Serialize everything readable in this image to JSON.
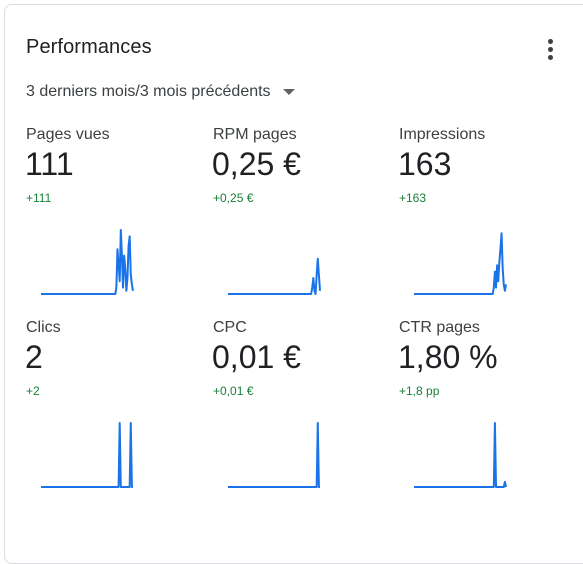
{
  "card": {
    "title": "Performances",
    "menu_icon": "more-vertical-icon",
    "period_label": "3 derniers mois/3 mois précédents",
    "period_icon": "caret-down-icon"
  },
  "colors": {
    "line": "#1a73e8",
    "positive_change": "#188038",
    "label": "#3c4043",
    "value": "#202124"
  },
  "metrics": [
    {
      "label": "Pages vues",
      "value": "111",
      "change": "+111",
      "spark": [
        0,
        0,
        0,
        0,
        0,
        0,
        0,
        0,
        0,
        0,
        0,
        0,
        0,
        0,
        0,
        0,
        0,
        0,
        0,
        0,
        0,
        0,
        0,
        0,
        0,
        0,
        0,
        0,
        0,
        0,
        0,
        0,
        0,
        0,
        0,
        0,
        0,
        0,
        0,
        0,
        0,
        0,
        0,
        0,
        0,
        0,
        0,
        0,
        0,
        0,
        0,
        0,
        0,
        0,
        0,
        0,
        0,
        0,
        0,
        0,
        0,
        0,
        0,
        0,
        0,
        0,
        0,
        0,
        0.1,
        0.7,
        0.45,
        0.2,
        1.0,
        0.6,
        0.1,
        0.6,
        0.4,
        0.05,
        0.25,
        0.75,
        0.9,
        0.3,
        0.15,
        0.05
      ]
    },
    {
      "label": "RPM pages",
      "value": "0,25 €",
      "change": "+0,25 €",
      "spark": [
        0,
        0,
        0,
        0,
        0,
        0,
        0,
        0,
        0,
        0,
        0,
        0,
        0,
        0,
        0,
        0,
        0,
        0,
        0,
        0,
        0,
        0,
        0,
        0,
        0,
        0,
        0,
        0,
        0,
        0,
        0,
        0,
        0,
        0,
        0,
        0,
        0,
        0,
        0,
        0,
        0,
        0,
        0,
        0,
        0,
        0,
        0,
        0,
        0,
        0,
        0,
        0,
        0,
        0,
        0,
        0,
        0,
        0,
        0,
        0,
        0,
        0,
        0,
        0,
        0,
        0,
        0,
        0,
        0,
        0,
        0,
        0,
        0,
        0,
        0,
        0,
        0.1,
        0.25,
        0.05,
        0,
        0.3,
        0.55,
        0.3,
        0.05
      ]
    },
    {
      "label": "Impressions",
      "value": "163",
      "change": "+163",
      "spark": [
        0,
        0,
        0,
        0,
        0,
        0,
        0,
        0,
        0,
        0,
        0,
        0,
        0,
        0,
        0,
        0,
        0,
        0,
        0,
        0,
        0,
        0,
        0,
        0,
        0,
        0,
        0,
        0,
        0,
        0,
        0,
        0,
        0,
        0,
        0,
        0,
        0,
        0,
        0,
        0,
        0,
        0,
        0,
        0,
        0,
        0,
        0,
        0,
        0,
        0,
        0,
        0,
        0,
        0,
        0,
        0,
        0,
        0,
        0,
        0,
        0,
        0,
        0,
        0,
        0,
        0,
        0,
        0,
        0,
        0,
        0,
        0,
        0.1,
        0.35,
        0.1,
        0.45,
        0.2,
        0.5,
        0.7,
        0.95,
        0.4,
        0.15,
        0.05,
        0.15
      ]
    },
    {
      "label": "Clics",
      "value": "2",
      "change": "+2",
      "spark": [
        0,
        0,
        0,
        0,
        0,
        0,
        0,
        0,
        0,
        0,
        0,
        0,
        0,
        0,
        0,
        0,
        0,
        0,
        0,
        0,
        0,
        0,
        0,
        0,
        0,
        0,
        0,
        0,
        0,
        0,
        0,
        0,
        0,
        0,
        0,
        0,
        0,
        0,
        0,
        0,
        0,
        0,
        0,
        0,
        0,
        0,
        0,
        0,
        0,
        0,
        0,
        0,
        0,
        0,
        0,
        0,
        0,
        0,
        0,
        0,
        0,
        0,
        0,
        0,
        0,
        0,
        0,
        0,
        0,
        0,
        0,
        1,
        0,
        0,
        0,
        0,
        0,
        0,
        0,
        0,
        0,
        1,
        0,
        0
      ]
    },
    {
      "label": "CPC",
      "value": "0,01 €",
      "change": "+0,01 €",
      "spark": [
        0,
        0,
        0,
        0,
        0,
        0,
        0,
        0,
        0,
        0,
        0,
        0,
        0,
        0,
        0,
        0,
        0,
        0,
        0,
        0,
        0,
        0,
        0,
        0,
        0,
        0,
        0,
        0,
        0,
        0,
        0,
        0,
        0,
        0,
        0,
        0,
        0,
        0,
        0,
        0,
        0,
        0,
        0,
        0,
        0,
        0,
        0,
        0,
        0,
        0,
        0,
        0,
        0,
        0,
        0,
        0,
        0,
        0,
        0,
        0,
        0,
        0,
        0,
        0,
        0,
        0,
        0,
        0,
        0,
        0,
        0,
        0,
        0,
        0,
        0,
        0,
        0,
        0,
        0,
        0,
        0,
        1,
        0,
        0
      ]
    },
    {
      "label": "CTR pages",
      "value": "1,80 %",
      "change": "+1,8 pp",
      "spark": [
        0,
        0,
        0,
        0,
        0,
        0,
        0,
        0,
        0,
        0,
        0,
        0,
        0,
        0,
        0,
        0,
        0,
        0,
        0,
        0,
        0,
        0,
        0,
        0,
        0,
        0,
        0,
        0,
        0,
        0,
        0,
        0,
        0,
        0,
        0,
        0,
        0,
        0,
        0,
        0,
        0,
        0,
        0,
        0,
        0,
        0,
        0,
        0,
        0,
        0,
        0,
        0,
        0,
        0,
        0,
        0,
        0,
        0,
        0,
        0,
        0,
        0,
        0,
        0,
        0,
        0,
        0,
        0,
        0,
        0,
        0,
        0,
        0,
        1,
        0,
        0,
        0,
        0,
        0,
        0,
        0,
        0,
        0.08,
        0
      ]
    }
  ]
}
